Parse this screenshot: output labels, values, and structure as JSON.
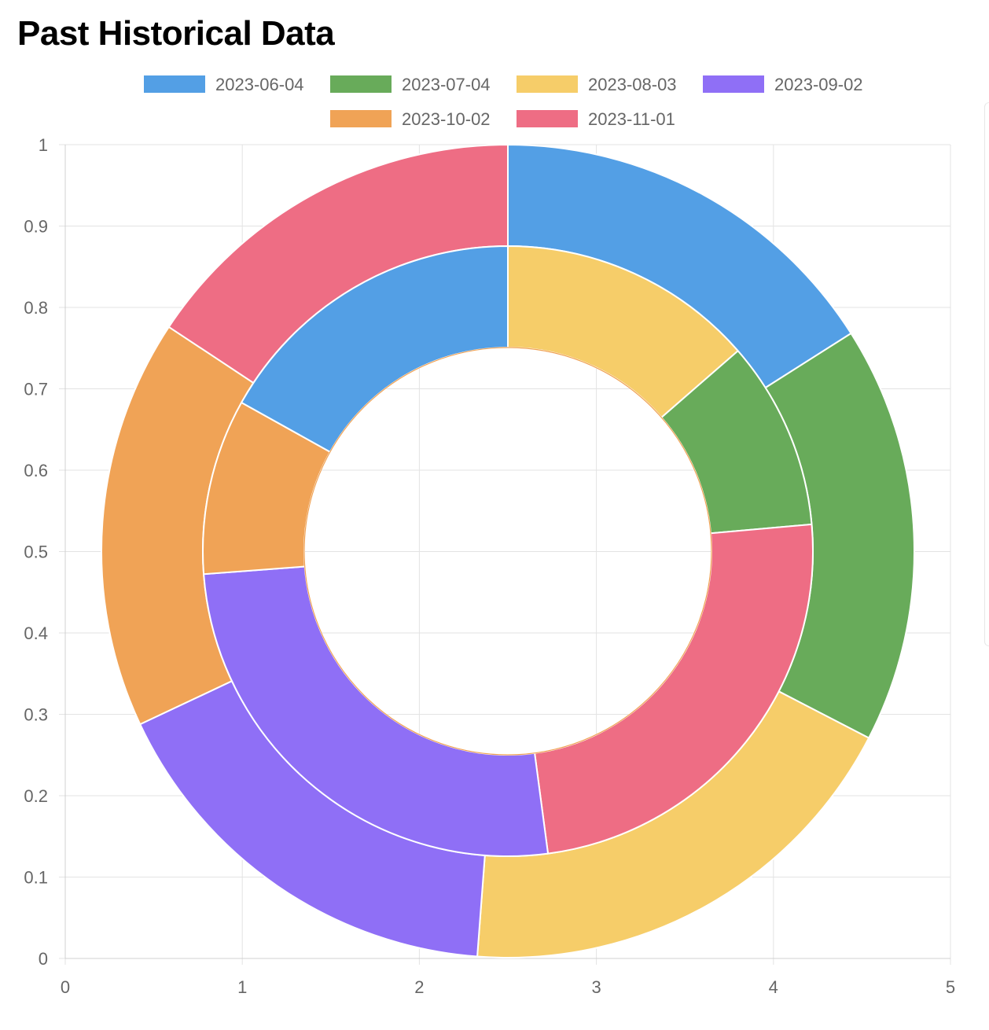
{
  "page": {
    "title": "Past Historical Data"
  },
  "chart_data": {
    "type": "doughnut",
    "title": "",
    "xlabel": "",
    "ylabel": "",
    "xlim": [
      0,
      5
    ],
    "ylim": [
      0,
      1
    ],
    "x_ticks": [
      "0",
      "1",
      "2",
      "3",
      "4",
      "5"
    ],
    "y_ticks": [
      "0",
      "0.1",
      "0.2",
      "0.3",
      "0.4",
      "0.5",
      "0.6",
      "0.7",
      "0.8",
      "0.9",
      "1"
    ],
    "grid": true,
    "legend_position": "top",
    "categories": [
      "2023-06-04",
      "2023-07-04",
      "2023-08-03",
      "2023-09-02",
      "2023-10-02",
      "2023-11-01"
    ],
    "colors": [
      "#539fe5",
      "#68ab5a",
      "#f6cd69",
      "#8f6ff6",
      "#f0a356",
      "#ee6d84"
    ],
    "rings": [
      {
        "ring": "outer",
        "segments": [
          {
            "category": "2023-06-04",
            "value": 16.0
          },
          {
            "category": "2023-07-04",
            "value": 16.6
          },
          {
            "category": "2023-08-03",
            "value": 18.6
          },
          {
            "category": "2023-09-02",
            "value": 16.8
          },
          {
            "category": "2023-10-02",
            "value": 16.3
          },
          {
            "category": "2023-11-01",
            "value": 15.7
          }
        ]
      },
      {
        "ring": "inner",
        "segments": [
          {
            "category": "2023-08-03",
            "value": 13.6
          },
          {
            "category": "2023-07-04",
            "value": 10.0
          },
          {
            "category": "2023-11-01",
            "value": 24.3
          },
          {
            "category": "2023-09-02",
            "value": 25.9
          },
          {
            "category": "2023-10-02",
            "value": 9.3
          },
          {
            "category": "2023-06-04",
            "value": 16.9
          }
        ]
      }
    ]
  }
}
